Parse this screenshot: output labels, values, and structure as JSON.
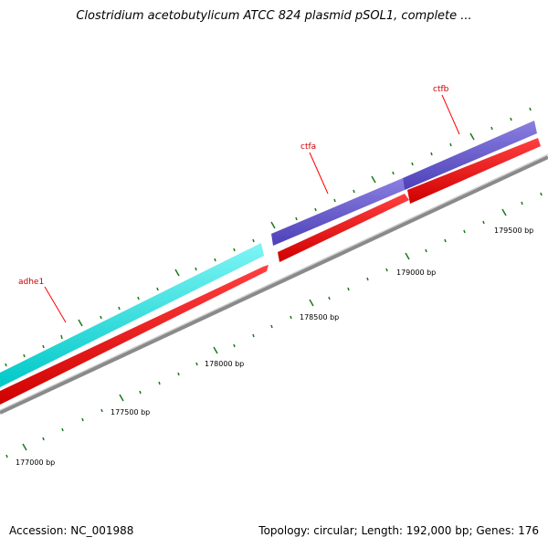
{
  "title": "Clostridium acetobutylicum ATCC 824 plasmid pSOL1, complete ...",
  "footer": {
    "accession": "Accession: NC_001988",
    "stats": "Topology: circular; Length: 192,000 bp; Genes: 176"
  },
  "scale": {
    "labels": [
      "177000 bp",
      "177500 bp",
      "178000 bp",
      "178500 bp",
      "179000 bp",
      "179500 bp"
    ]
  },
  "genes": [
    {
      "name": "adhe1",
      "strand": "forward",
      "track": "outer",
      "color": "#00e5e5"
    },
    {
      "name": "ctfa",
      "strand": "forward",
      "track": "outer",
      "color": "#6a5acd"
    },
    {
      "name": "ctfb",
      "strand": "forward",
      "track": "outer",
      "color": "#6a5acd"
    }
  ],
  "colors": {
    "cds_track": "#ff0000",
    "backbone": "#888888",
    "tick": "#1a7a1a",
    "label": "#cc0000"
  }
}
